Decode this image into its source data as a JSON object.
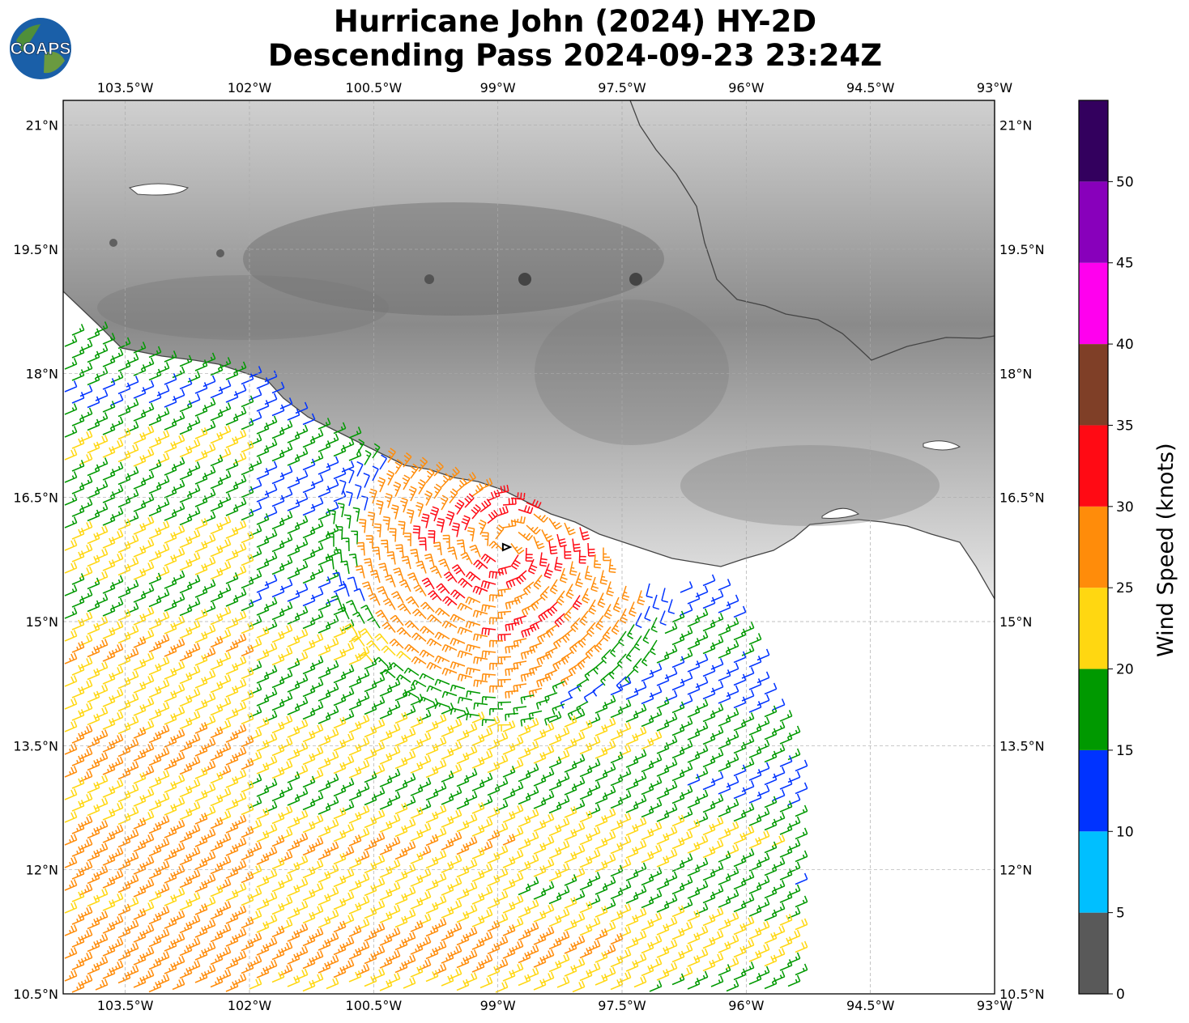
{
  "title": {
    "line1": "Hurricane John (2024) HY-2D",
    "line2": "Descending Pass 2024-09-23 23:24Z"
  },
  "logo": {
    "text": "COAPS",
    "icon": "globe-icon"
  },
  "map": {
    "lon_min": -104.25,
    "lon_max": -93.0,
    "lat_min": 10.5,
    "lat_max": 21.3,
    "lon_ticks": [
      "103.5°W",
      "102°W",
      "100.5°W",
      "99°W",
      "97.5°W",
      "96°W",
      "94.5°W",
      "93°W"
    ],
    "lon_values": [
      -103.5,
      -102,
      -100.5,
      -99,
      -97.5,
      -96,
      -94.5,
      -93
    ],
    "lat_ticks": [
      "21°N",
      "19.5°N",
      "18°N",
      "16.5°N",
      "15°N",
      "13.5°N",
      "12°N",
      "10.5°N"
    ],
    "lat_values": [
      21,
      19.5,
      18,
      16.5,
      15,
      13.5,
      12,
      10.5
    ],
    "storm_center": {
      "lon": -98.9,
      "lat": 15.9
    },
    "land_color": "#bdbdbd",
    "coast_color": "#444444"
  },
  "colorbar": {
    "label": "Wind Speed (knots)",
    "ticks": [
      "0",
      "5",
      "10",
      "15",
      "20",
      "25",
      "30",
      "35",
      "40",
      "45",
      "50"
    ],
    "bins": [
      {
        "min": 0,
        "max": 5,
        "color": "#595959"
      },
      {
        "min": 5,
        "max": 10,
        "color": "#00bfff"
      },
      {
        "min": 10,
        "max": 15,
        "color": "#0033ff"
      },
      {
        "min": 15,
        "max": 20,
        "color": "#009900"
      },
      {
        "min": 20,
        "max": 25,
        "color": "#ffd711"
      },
      {
        "min": 25,
        "max": 30,
        "color": "#ff8c0a"
      },
      {
        "min": 30,
        "max": 35,
        "color": "#ff0a14"
      },
      {
        "min": 35,
        "max": 40,
        "color": "#7f3f27"
      },
      {
        "min": 40,
        "max": 45,
        "color": "#ff00ee"
      },
      {
        "min": 45,
        "max": 50,
        "color": "#8800bb"
      },
      {
        "min": 50,
        "max": 55,
        "color": "#33005e"
      }
    ]
  }
}
